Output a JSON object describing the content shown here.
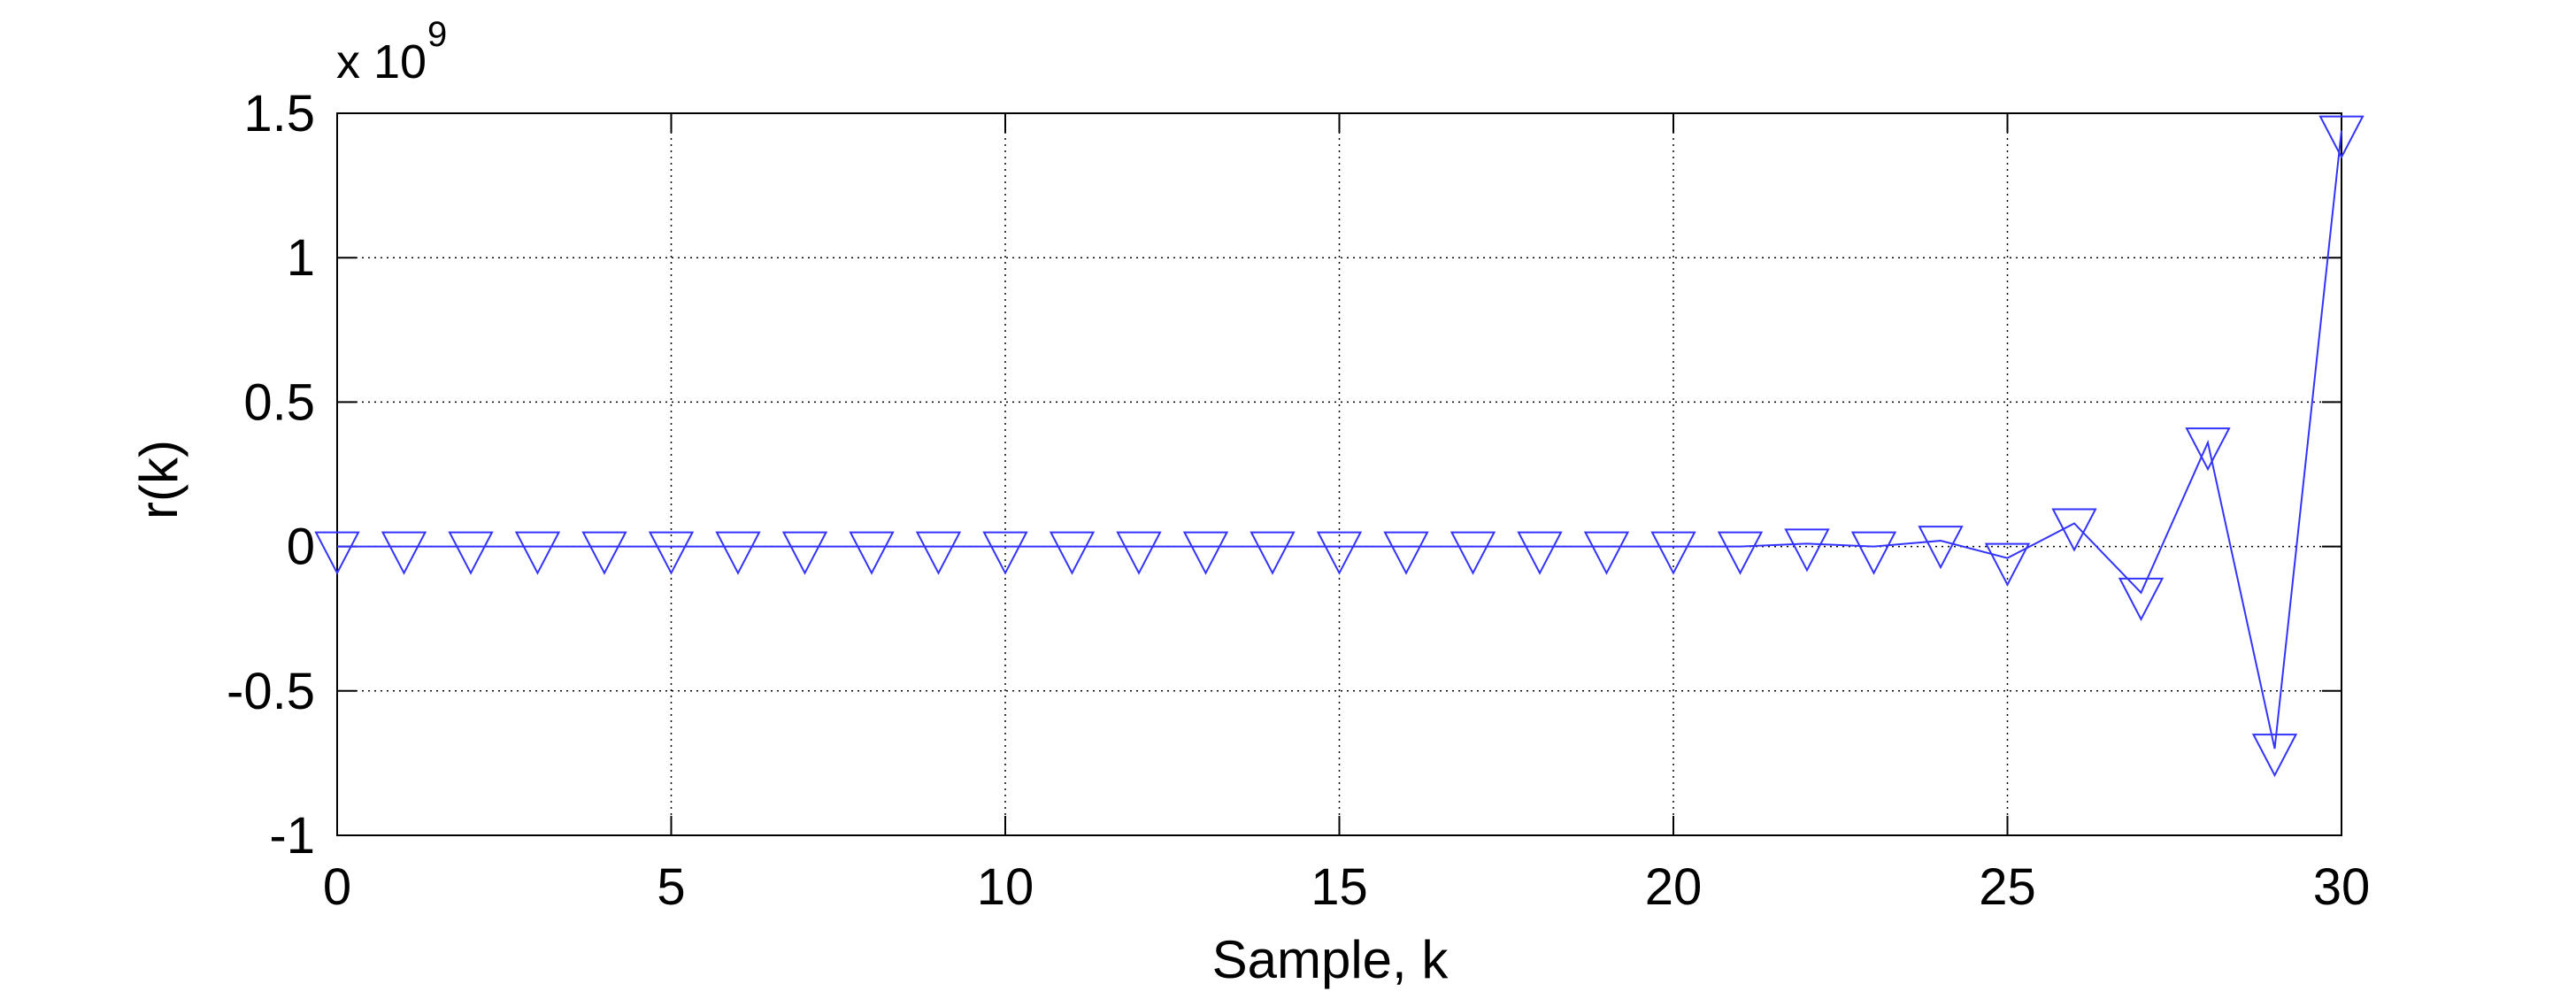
{
  "colors": {
    "series": "#3333ff",
    "axis": "#000000",
    "grid": "#000000",
    "background": "#ffffff"
  },
  "chart_data": {
    "type": "line",
    "marker": "triangle-down",
    "xlabel": "Sample, k",
    "ylabel": "r(k)",
    "exponent_base": "x 10",
    "exponent_power": "9",
    "xlim": [
      0,
      30
    ],
    "ylim": [
      -1,
      1.5
    ],
    "grid": true,
    "x_ticks": [
      0,
      5,
      10,
      15,
      20,
      25,
      30
    ],
    "x_tick_labels": [
      "0",
      "5",
      "10",
      "15",
      "20",
      "25",
      "30"
    ],
    "y_ticks": [
      -1,
      -0.5,
      0,
      0.5,
      1,
      1.5
    ],
    "y_tick_labels": [
      "-1",
      "-0.5",
      "0",
      "0.5",
      "1",
      "1.5"
    ],
    "x": [
      0,
      1,
      2,
      3,
      4,
      5,
      6,
      7,
      8,
      9,
      10,
      11,
      12,
      13,
      14,
      15,
      16,
      17,
      18,
      19,
      20,
      21,
      22,
      23,
      24,
      25,
      26,
      27,
      28,
      29,
      30
    ],
    "y": [
      0,
      0,
      0,
      0,
      0,
      0,
      0,
      0,
      0,
      0,
      0,
      0,
      0,
      0,
      0,
      0,
      0,
      0,
      0,
      0,
      0,
      0,
      0.01,
      0,
      0.02,
      -0.04,
      0.08,
      -0.16,
      0.36,
      -0.7,
      1.44
    ]
  }
}
